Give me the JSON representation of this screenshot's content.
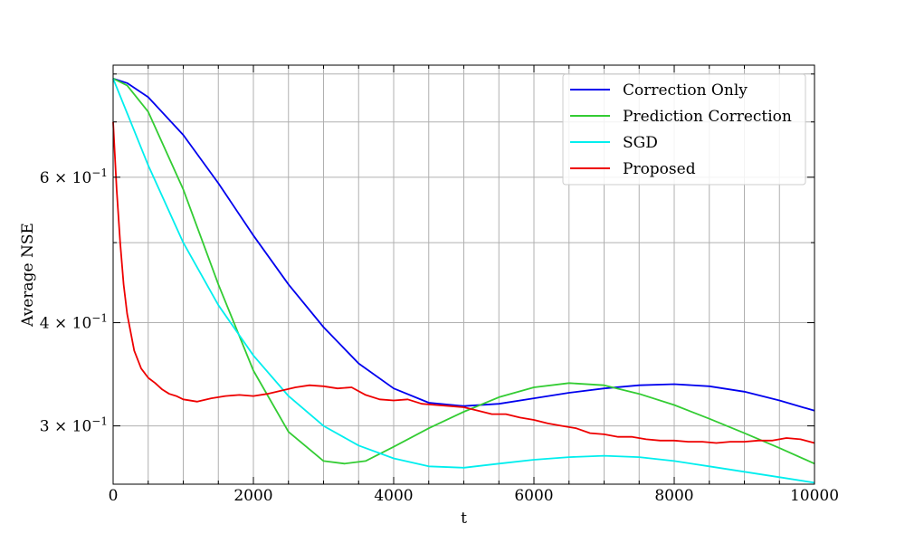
{
  "chart_data": {
    "type": "line",
    "title": "",
    "xlabel": "t",
    "ylabel": "Average NSE",
    "xlim": [
      0,
      10000
    ],
    "ylim": [
      0.255,
      0.82
    ],
    "yscale": "log",
    "grid": true,
    "legend_position": "top-right",
    "x_ticks": [
      {
        "value": 0,
        "label": "0"
      },
      {
        "value": 2000,
        "label": "2000"
      },
      {
        "value": 4000,
        "label": "4000"
      },
      {
        "value": 6000,
        "label": "6000"
      },
      {
        "value": 8000,
        "label": "8000"
      },
      {
        "value": 10000,
        "label": "10000"
      }
    ],
    "y_ticks": [
      {
        "value": 0.3,
        "base": "3 × 10",
        "exp": "−1"
      },
      {
        "value": 0.4,
        "base": "4 × 10",
        "exp": "−1"
      },
      {
        "value": 0.6,
        "base": "6 × 10",
        "exp": "−1"
      }
    ],
    "series": [
      {
        "name": "Correction Only",
        "color": "#0000ee",
        "x": [
          0,
          200,
          500,
          1000,
          1500,
          2000,
          2500,
          3000,
          3500,
          4000,
          4500,
          5000,
          5500,
          6000,
          6500,
          7000,
          7500,
          8000,
          8500,
          9000,
          9500,
          10000
        ],
        "y": [
          0.79,
          0.78,
          0.75,
          0.675,
          0.59,
          0.51,
          0.445,
          0.395,
          0.357,
          0.333,
          0.32,
          0.317,
          0.319,
          0.324,
          0.329,
          0.333,
          0.336,
          0.337,
          0.335,
          0.33,
          0.322,
          0.313
        ]
      },
      {
        "name": "Prediction Correction",
        "color": "#33cc33",
        "x": [
          0,
          200,
          500,
          1000,
          1500,
          2000,
          2500,
          3000,
          3300,
          3600,
          4000,
          4500,
          5000,
          5500,
          6000,
          6500,
          7000,
          7500,
          8000,
          8500,
          9000,
          9500,
          10000
        ],
        "y": [
          0.79,
          0.775,
          0.72,
          0.58,
          0.445,
          0.35,
          0.295,
          0.272,
          0.27,
          0.272,
          0.283,
          0.298,
          0.312,
          0.325,
          0.334,
          0.338,
          0.336,
          0.328,
          0.318,
          0.306,
          0.294,
          0.282,
          0.27
        ]
      },
      {
        "name": "SGD",
        "color": "#00eeee",
        "x": [
          0,
          250,
          500,
          1000,
          1500,
          2000,
          2500,
          3000,
          3500,
          4000,
          4500,
          5000,
          5500,
          6000,
          6500,
          7000,
          7500,
          8000,
          8500,
          9000,
          9500,
          10000
        ],
        "y": [
          0.79,
          0.7,
          0.62,
          0.5,
          0.42,
          0.365,
          0.326,
          0.3,
          0.284,
          0.274,
          0.268,
          0.267,
          0.27,
          0.273,
          0.275,
          0.276,
          0.275,
          0.272,
          0.268,
          0.264,
          0.26,
          0.256
        ]
      },
      {
        "name": "Proposed",
        "color": "#ee0000",
        "x": [
          0,
          50,
          100,
          150,
          200,
          300,
          400,
          500,
          600,
          700,
          800,
          900,
          1000,
          1200,
          1400,
          1600,
          1800,
          2000,
          2200,
          2400,
          2600,
          2800,
          3000,
          3200,
          3400,
          3600,
          3800,
          4000,
          4200,
          4400,
          4600,
          4800,
          5000,
          5200,
          5400,
          5600,
          5800,
          6000,
          6200,
          6400,
          6600,
          6800,
          7000,
          7200,
          7400,
          7600,
          7800,
          8000,
          8200,
          8400,
          8600,
          8800,
          9000,
          9200,
          9400,
          9600,
          9800,
          10000
        ],
        "y": [
          0.7,
          0.58,
          0.5,
          0.445,
          0.41,
          0.37,
          0.352,
          0.343,
          0.338,
          0.332,
          0.328,
          0.326,
          0.323,
          0.321,
          0.324,
          0.326,
          0.327,
          0.326,
          0.328,
          0.331,
          0.334,
          0.336,
          0.335,
          0.333,
          0.334,
          0.327,
          0.323,
          0.322,
          0.323,
          0.319,
          0.318,
          0.317,
          0.316,
          0.313,
          0.31,
          0.31,
          0.307,
          0.305,
          0.302,
          0.3,
          0.298,
          0.294,
          0.293,
          0.291,
          0.291,
          0.289,
          0.288,
          0.288,
          0.287,
          0.287,
          0.286,
          0.287,
          0.287,
          0.288,
          0.288,
          0.29,
          0.289,
          0.286
        ]
      }
    ]
  }
}
